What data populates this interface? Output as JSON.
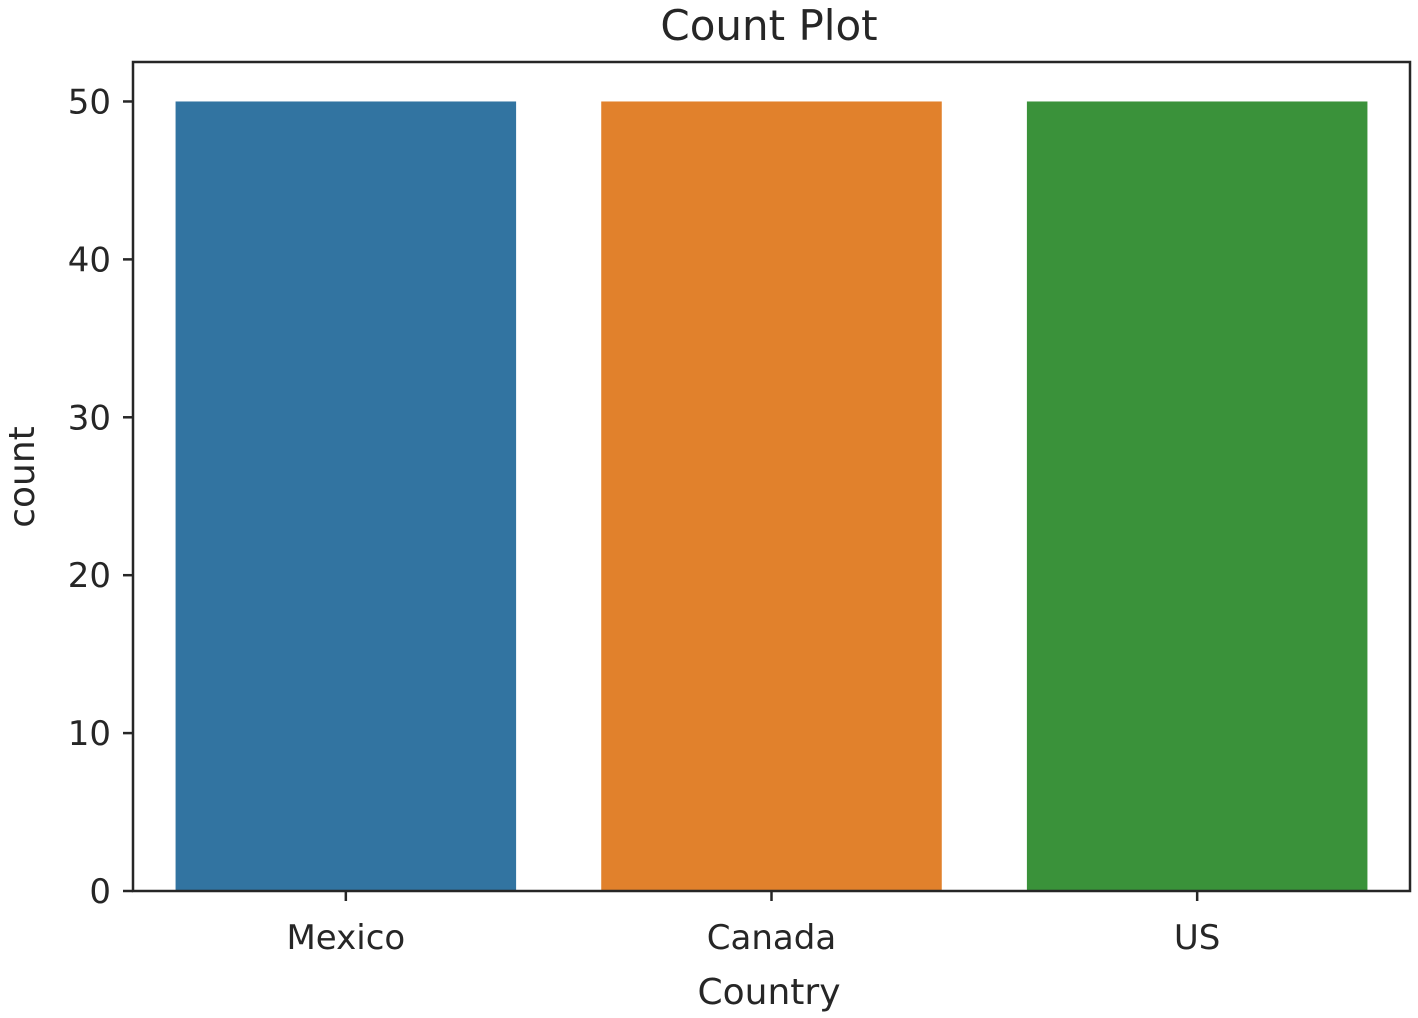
{
  "chart_data": {
    "type": "bar",
    "title": "Count Plot",
    "xlabel": "Country",
    "ylabel": "count",
    "categories": [
      "Mexico",
      "Canada",
      "US"
    ],
    "values": [
      50,
      50,
      50
    ],
    "colors": [
      "#3274a1",
      "#e1812c",
      "#3a923a"
    ],
    "ylim": [
      0,
      52.5
    ],
    "yticks": [
      0,
      10,
      20,
      30,
      40,
      50
    ],
    "grid": false,
    "legend": "none"
  }
}
